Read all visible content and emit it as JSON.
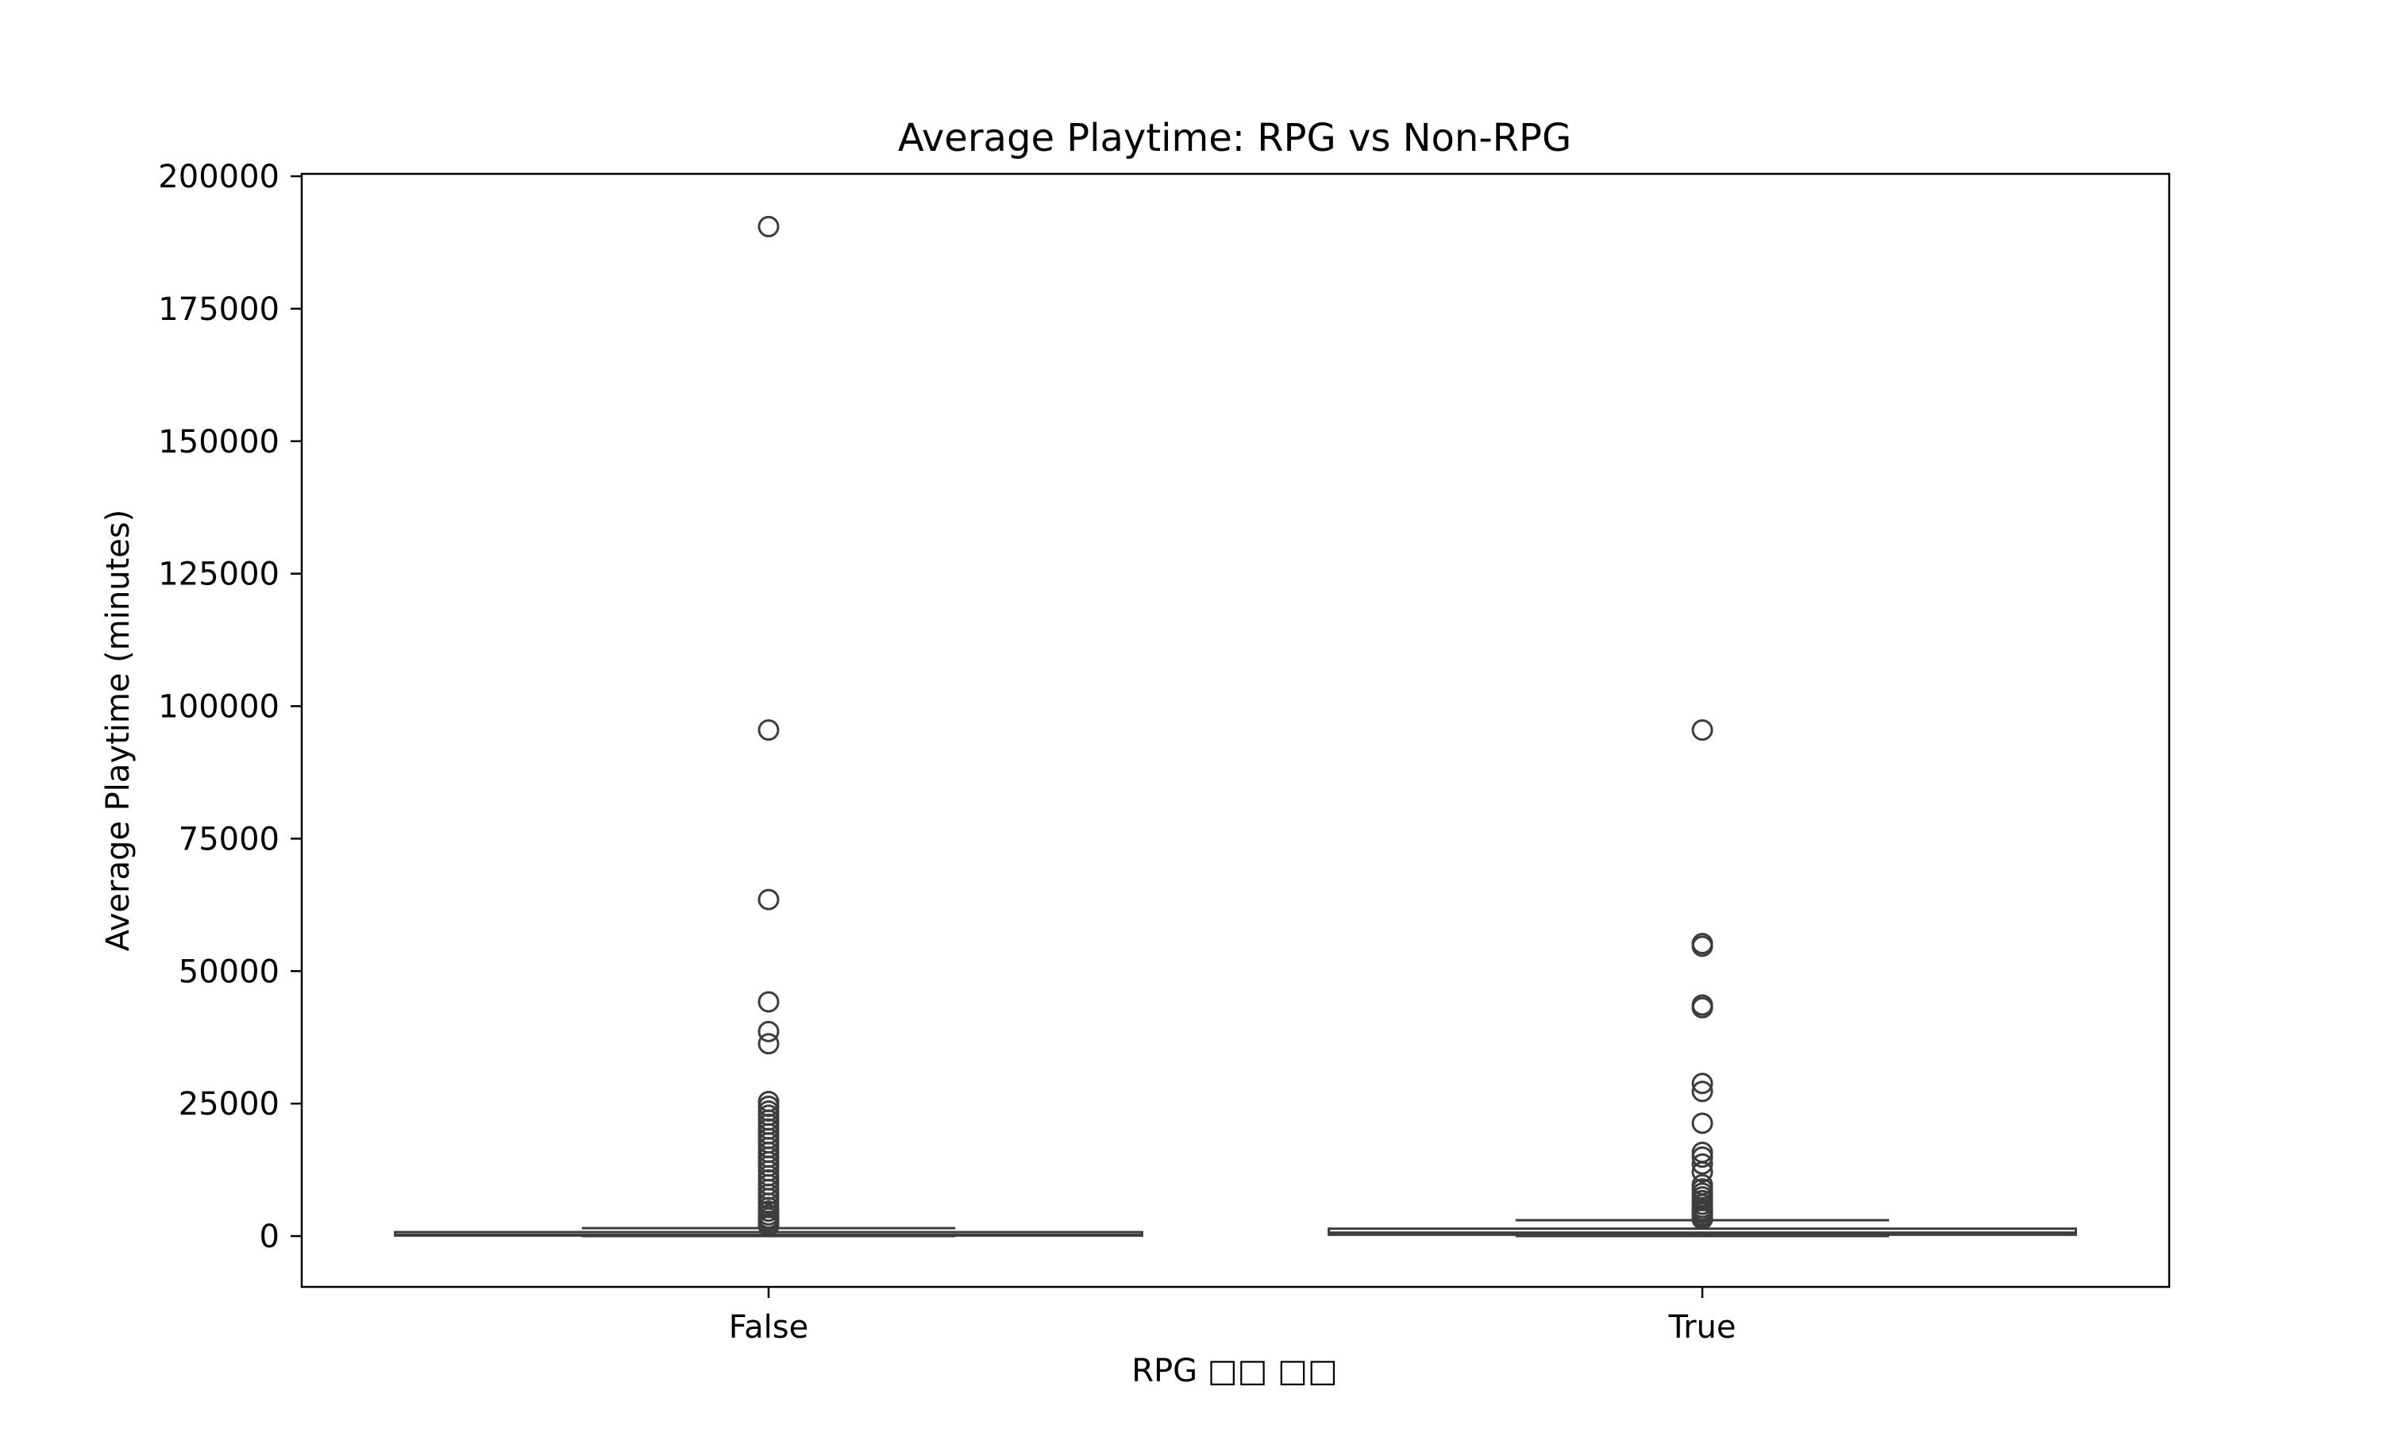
{
  "chart_data": {
    "type": "box",
    "title": "Average Playtime: RPG vs Non-RPG",
    "xlabel": "RPG □□ □□",
    "ylabel": "Average Playtime (minutes)",
    "categories": [
      "False",
      "True"
    ],
    "ylim": [
      -7500,
      200000
    ],
    "yticks": [
      0,
      25000,
      50000,
      75000,
      100000,
      125000,
      150000,
      175000,
      200000
    ],
    "grid": false,
    "series": [
      {
        "category": "False",
        "whisker_low": 0,
        "q1": 100,
        "median": 250,
        "q3": 750,
        "whisker_high": 1500,
        "outliers": [
          190500,
          95500,
          63500,
          44200,
          38600,
          36300,
          25400,
          24500,
          23600,
          22800,
          21900,
          21100,
          20200,
          19300,
          18400,
          17600,
          16700,
          15800,
          14900,
          14000,
          13200,
          12300,
          11400,
          10600,
          9700,
          8800,
          7900,
          7100,
          6200,
          5400,
          4700,
          4000,
          3400,
          2800,
          2300,
          1900
        ]
      },
      {
        "category": "True",
        "whisker_low": 0,
        "q1": 250,
        "median": 650,
        "q3": 1400,
        "whisker_high": 3000,
        "outliers": [
          95500,
          55200,
          54700,
          43600,
          43100,
          28800,
          27300,
          21300,
          15800,
          14900,
          13600,
          12100,
          9700,
          8900,
          8100,
          7400,
          6700,
          6000,
          5400,
          4900,
          4400,
          3900,
          3500,
          3200
        ]
      }
    ],
    "colors": {
      "line": "#3d3d3d",
      "box_fill": "#ffffff",
      "frame": "#000000",
      "background": "#ffffff"
    }
  }
}
